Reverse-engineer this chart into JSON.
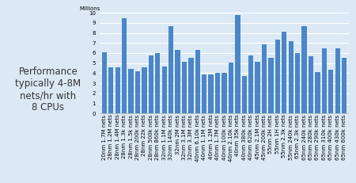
{
  "categories": [
    "20nm 1.7M nets",
    "28nm 1.2M nets",
    "28nm 1.4M nets",
    "28nm 1.3k nets",
    "28nm 1.5k nets",
    "28nm 200k nets",
    "28nm 22k nets",
    "28nm 500k nets",
    "28nm 860k nets",
    "32nm 1.1M nets",
    "32nm 140k nets",
    "32nm 2M nets",
    "32nm 3.1M nets",
    "32nm 3.3M nets",
    "40nm 6.10k nets",
    "40nm 1.1M nets",
    "40nm 1.2M nets",
    "40nm 1.7M nets",
    "40nm 100k nets",
    "40nm 2.10k nets",
    "40nm 35k nets",
    "40nm 380k nets",
    "40nm 620k nets",
    "45nm 2.1M nets",
    "45nm 200k nets",
    "55nm 2H nets",
    "55nm 1H nets",
    "55nm 2.3k nets",
    "55nm 240k nets",
    "65nm 2.3k nets",
    "65nm 240k nets",
    "65nm 280k nets",
    "65nm 290k nets",
    "65nm 310k nets",
    "65nm 400k nets",
    "65nm 430k nets",
    "65nm 600k nets"
  ],
  "values": [
    6.1,
    4.6,
    4.6,
    9.5,
    4.4,
    4.15,
    4.6,
    5.8,
    6.0,
    4.7,
    8.7,
    6.3,
    5.1,
    5.55,
    6.3,
    3.9,
    3.85,
    4.05,
    4.0,
    5.05,
    9.75,
    3.75,
    5.8,
    5.15,
    6.85,
    5.5,
    7.35,
    8.1,
    7.2,
    6.0,
    8.7,
    5.7,
    4.1,
    6.5,
    4.35,
    6.5,
    5.55
  ],
  "bar_color": "#4a86c8",
  "background_color": "#dce9f5",
  "plot_bg_color": "#dce9f5",
  "annotation_text": "Performance\ntypically 4-8M\nnets/hr with\n8 CPUs",
  "annotation_bg": "#dce9f5",
  "ylabel": "Millions",
  "ylim": [
    0,
    10
  ],
  "yticks": [
    0,
    1,
    2,
    3,
    4,
    5,
    6,
    7,
    8,
    9,
    10
  ],
  "axis_label_fontsize": 5,
  "tick_fontsize": 5.0,
  "annot_fontsize": 8.5
}
